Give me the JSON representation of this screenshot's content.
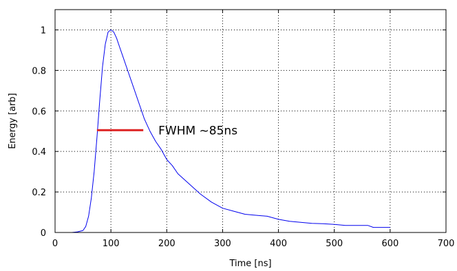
{
  "chart_data": {
    "type": "line",
    "title": "",
    "xlabel": "Time [ns]",
    "ylabel": "Energy [arb]",
    "xlim": [
      0,
      700
    ],
    "ylim": [
      0,
      1.1
    ],
    "grid": true,
    "x_ticks": [
      0,
      100,
      200,
      300,
      400,
      500,
      600,
      700
    ],
    "y_ticks": [
      0,
      0.2,
      0.4,
      0.6,
      0.8,
      1
    ],
    "x_tick_labels": [
      "0",
      "100",
      "200",
      "300",
      "400",
      "500",
      "600",
      "700"
    ],
    "y_tick_labels": [
      "0",
      "0.2",
      "0.4",
      "0.6",
      "0.8",
      "1"
    ],
    "series": [
      {
        "color": "#0000ee",
        "x": [
          0,
          30,
          40,
          50,
          55,
          60,
          65,
          70,
          75,
          80,
          85,
          90,
          95,
          100,
          105,
          110,
          115,
          120,
          130,
          140,
          150,
          155,
          160,
          170,
          180,
          190,
          200,
          210,
          220,
          240,
          260,
          280,
          300,
          320,
          340,
          360,
          380,
          400,
          420,
          440,
          460,
          480,
          500,
          520,
          540,
          560,
          570,
          600
        ],
        "y": [
          0,
          0,
          0.003,
          0.01,
          0.03,
          0.08,
          0.17,
          0.3,
          0.47,
          0.65,
          0.82,
          0.93,
          0.99,
          1.0,
          0.99,
          0.96,
          0.92,
          0.88,
          0.8,
          0.72,
          0.64,
          0.6,
          0.56,
          0.5,
          0.45,
          0.41,
          0.36,
          0.33,
          0.29,
          0.24,
          0.19,
          0.15,
          0.12,
          0.105,
          0.09,
          0.085,
          0.08,
          0.065,
          0.055,
          0.05,
          0.045,
          0.043,
          0.04,
          0.035,
          0.035,
          0.035,
          0.025,
          0.025
        ]
      }
    ],
    "annotations": [
      {
        "text": "FWHM ~85ns",
        "line_x": [
          75,
          158
        ],
        "line_y": 0.505,
        "line_color": "#dd2222",
        "text_x": 185,
        "text_y": 0.505
      }
    ]
  }
}
